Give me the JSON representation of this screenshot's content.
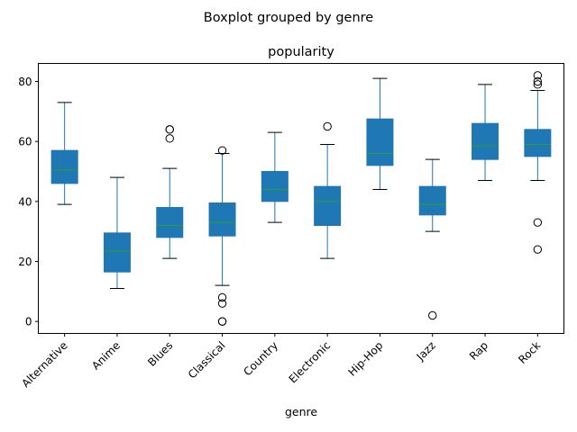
{
  "chart_data": {
    "type": "boxplot",
    "suptitle": "Boxplot grouped by genre",
    "title": "popularity",
    "xlabel": "genre",
    "ylabel": "",
    "ylim": [
      -4,
      86
    ],
    "yticks": [
      0,
      20,
      40,
      60,
      80
    ],
    "grid": false,
    "box_color": "#1f77b4",
    "median_color": "#2ca02c",
    "categories": [
      "Alternative",
      "Anime",
      "Blues",
      "Classical",
      "Country",
      "Electronic",
      "Hip-Hop",
      "Jazz",
      "Rap",
      "Rock"
    ],
    "boxes": [
      {
        "genre": "Alternative",
        "whisker_low": 39,
        "q1": 46,
        "median": 50.5,
        "q3": 57,
        "whisker_high": 73,
        "outliers": []
      },
      {
        "genre": "Anime",
        "whisker_low": 11,
        "q1": 16.5,
        "median": 23.5,
        "q3": 29.5,
        "whisker_high": 48,
        "outliers": []
      },
      {
        "genre": "Blues",
        "whisker_low": 21,
        "q1": 28,
        "median": 32,
        "q3": 38,
        "whisker_high": 51,
        "outliers": [
          61,
          64,
          64
        ]
      },
      {
        "genre": "Classical",
        "whisker_low": 12,
        "q1": 28.5,
        "median": 33,
        "q3": 39.5,
        "whisker_high": 56,
        "outliers": [
          57,
          8,
          6,
          0,
          0
        ]
      },
      {
        "genre": "Country",
        "whisker_low": 33,
        "q1": 40,
        "median": 44,
        "q3": 50,
        "whisker_high": 63,
        "outliers": []
      },
      {
        "genre": "Electronic",
        "whisker_low": 21,
        "q1": 32,
        "median": 40,
        "q3": 45,
        "whisker_high": 59,
        "outliers": [
          65
        ]
      },
      {
        "genre": "Hip-Hop",
        "whisker_low": 44,
        "q1": 52,
        "median": 56,
        "q3": 67.5,
        "whisker_high": 81,
        "outliers": []
      },
      {
        "genre": "Jazz",
        "whisker_low": 30,
        "q1": 35.5,
        "median": 39,
        "q3": 45,
        "whisker_high": 54,
        "outliers": [
          2
        ]
      },
      {
        "genre": "Rap",
        "whisker_low": 47,
        "q1": 54,
        "median": 58.5,
        "q3": 66,
        "whisker_high": 79,
        "outliers": []
      },
      {
        "genre": "Rock",
        "whisker_low": 47,
        "q1": 55,
        "median": 59,
        "q3": 64,
        "whisker_high": 77,
        "outliers": [
          79,
          80,
          82,
          33,
          24
        ]
      }
    ]
  }
}
